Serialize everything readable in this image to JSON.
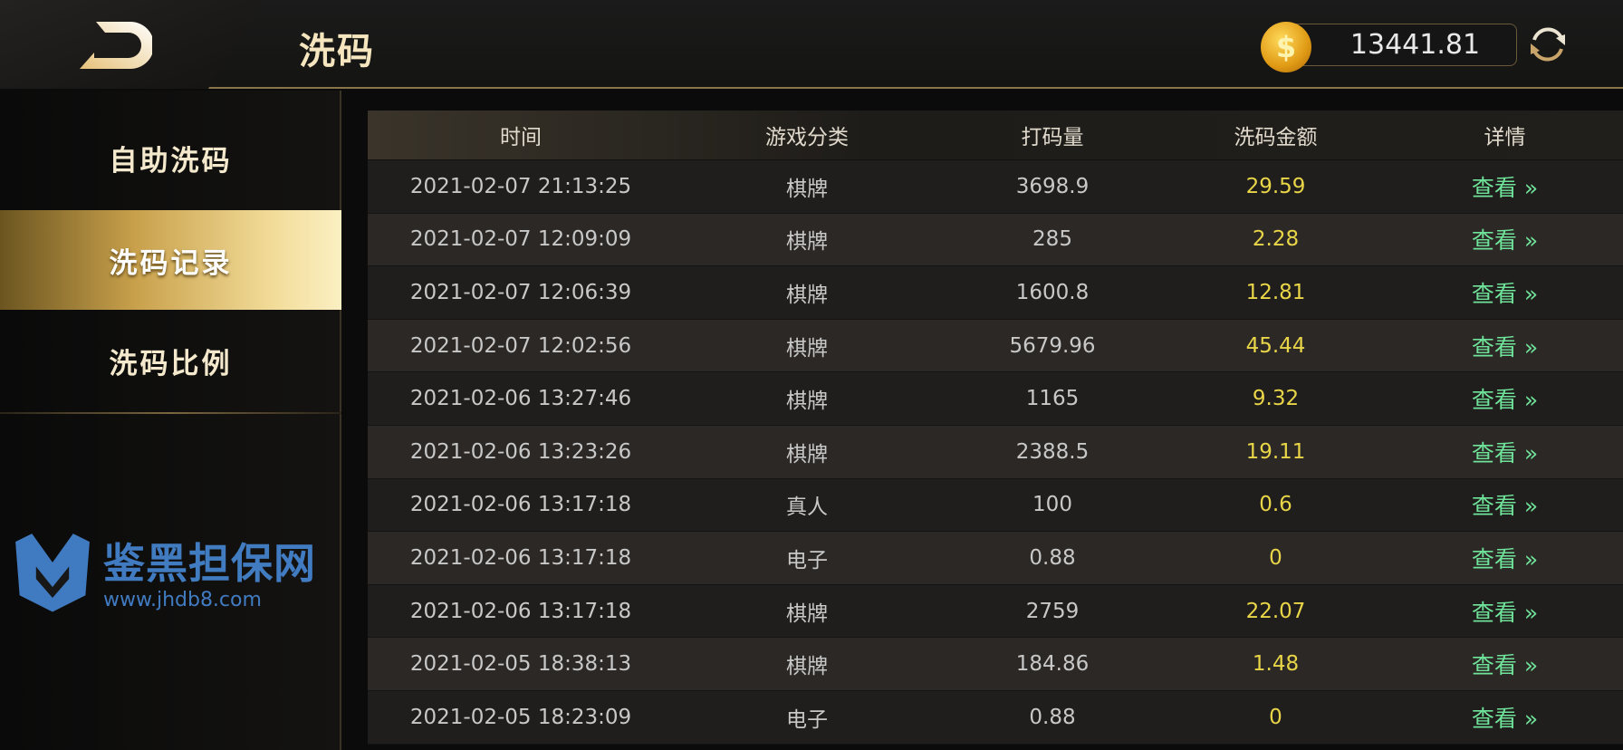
{
  "header": {
    "title": "洗码",
    "balance": "13441.81",
    "coin_icon": "dollar-coin-icon",
    "coin_symbol": "$",
    "back_icon": "back-icon",
    "refresh_icon": "refresh-icon"
  },
  "sidebar": {
    "items": [
      {
        "label": "自助洗码",
        "active": false
      },
      {
        "label": "洗码记录",
        "active": true
      },
      {
        "label": "洗码比例",
        "active": false
      }
    ]
  },
  "table": {
    "columns": [
      "时间",
      "游戏分类",
      "打码量",
      "洗码金额",
      "详情"
    ],
    "rows": [
      [
        "2021-02-07 21:13:25",
        "棋牌",
        "3698.9",
        "29.59",
        "查看 »"
      ],
      [
        "2021-02-07 12:09:09",
        "棋牌",
        "285",
        "2.28",
        "查看 »"
      ],
      [
        "2021-02-07 12:06:39",
        "棋牌",
        "1600.8",
        "12.81",
        "查看 »"
      ],
      [
        "2021-02-07 12:02:56",
        "棋牌",
        "5679.96",
        "45.44",
        "查看 »"
      ],
      [
        "2021-02-06 13:27:46",
        "棋牌",
        "1165",
        "9.32",
        "查看 »"
      ],
      [
        "2021-02-06 13:23:26",
        "棋牌",
        "2388.5",
        "19.11",
        "查看 »"
      ],
      [
        "2021-02-06 13:17:18",
        "真人",
        "100",
        "0.6",
        "查看 »"
      ],
      [
        "2021-02-06 13:17:18",
        "电子",
        "0.88",
        "0",
        "查看 »"
      ],
      [
        "2021-02-06 13:17:18",
        "棋牌",
        "2759",
        "22.07",
        "查看 »"
      ],
      [
        "2021-02-05 18:38:13",
        "棋牌",
        "184.86",
        "1.48",
        "查看 »"
      ],
      [
        "2021-02-05 18:23:09",
        "电子",
        "0.88",
        "0",
        "查看 »"
      ]
    ]
  },
  "watermark": {
    "name": "鉴黑担保网",
    "url": "www.jhdb8.com"
  },
  "colors": {
    "gold": "#c9a14c",
    "wash_amount": "#e9d548",
    "view_link": "#6fe39a",
    "accent_line": "#8a744a"
  }
}
